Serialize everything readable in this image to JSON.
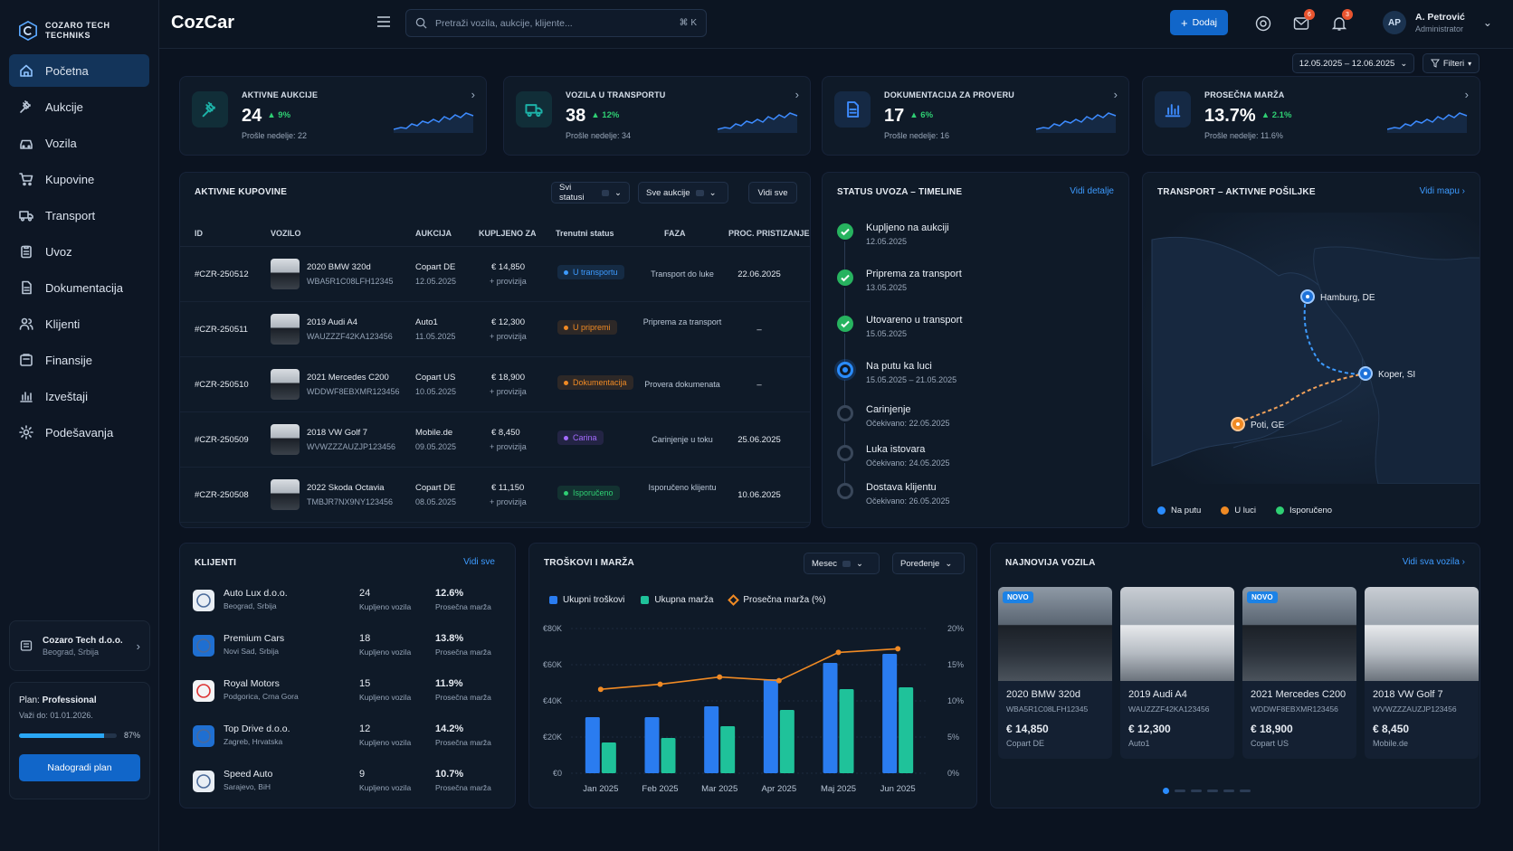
{
  "brand": {
    "logo_title": "COZARO TECH",
    "logo_sub": "TECHNIKS",
    "app_name": "CozCar"
  },
  "nav": [
    {
      "label": "Početna",
      "icon": "home-icon",
      "active": true
    },
    {
      "label": "Aukcije",
      "icon": "gavel-icon"
    },
    {
      "label": "Vozila",
      "icon": "car-icon"
    },
    {
      "label": "Kupovine",
      "icon": "cart-icon"
    },
    {
      "label": "Transport",
      "icon": "truck-icon"
    },
    {
      "label": "Uvoz",
      "icon": "clipboard-icon"
    },
    {
      "label": "Dokumentacija",
      "icon": "document-icon"
    },
    {
      "label": "Klijenti",
      "icon": "users-icon"
    },
    {
      "label": "Finansije",
      "icon": "wallet-icon"
    },
    {
      "label": "Izveštaji",
      "icon": "bar-chart-icon"
    },
    {
      "label": "Podešavanja",
      "icon": "gear-icon"
    }
  ],
  "company": {
    "name": "Cozaro Tech d.o.o.",
    "location": "Beograd, Srbija"
  },
  "plan": {
    "label": "Plan:",
    "name": "Professional",
    "valid": "Važi do: 01.01.2026.",
    "progress_pct": 87,
    "progress_text": "87%",
    "upgrade": "Nadogradi plan"
  },
  "search": {
    "placeholder": "Pretraži vozila, aukcije, klijente...",
    "shortcut": "⌘ K"
  },
  "topbar": {
    "add_label": "Dodaj",
    "mail_badge": "6",
    "bell_badge": "3"
  },
  "user": {
    "initials": "AP",
    "name": "A. Petrović",
    "role": "Administrator"
  },
  "filters": {
    "date_range": "12.05.2025 – 12.06.2025",
    "filter_label": "Filteri"
  },
  "kpis": [
    {
      "label": "AKTIVNE AUKCIJE",
      "value": "24",
      "change": "▲ 9%",
      "prev": "Prošle nedelje: 22",
      "icon": "gavel-icon",
      "color": "#1db2a8"
    },
    {
      "label": "VOZILA U TRANSPORTU",
      "value": "38",
      "change": "▲ 12%",
      "prev": "Prošle nedelje: 34",
      "icon": "truck-icon",
      "color": "#1db2a8"
    },
    {
      "label": "DOKUMENTACIJA ZA PROVERU",
      "value": "17",
      "change": "▲ 6%",
      "prev": "Prošle nedelje: 16",
      "icon": "document-icon",
      "color": "#3d8bff"
    },
    {
      "label": "PROSEČNA MARŽA",
      "value": "13.7%",
      "change": "▲ 2.1%",
      "prev": "Prošle nedelje: 11.6%",
      "icon": "bar-chart-icon",
      "color": "#3d8bff"
    }
  ],
  "purchases": {
    "title": "AKTIVNE KUPOVINE",
    "filter_status": "Svi statusi",
    "filter_auction": "Sve aukcije",
    "view_all": "Vidi sve",
    "columns": [
      "ID",
      "VOZILO",
      "AUKCIJA",
      "KUPLJENO ZA",
      "Trenutni status",
      "FAZA",
      "PROC. PRISTIZANJE"
    ],
    "rows": [
      {
        "id": "#CZR-250512",
        "vehicle": "2020 BMW 320d",
        "vin": "WBA5R1C08LFH12345",
        "auction": "Copart DE",
        "adate": "12.05.2025",
        "price": "€ 14,850",
        "fee": "+ provizija",
        "status": "U transportu",
        "status_color": "#3d9bff",
        "phase": "Transport do luke",
        "eta": "22.06.2025"
      },
      {
        "id": "#CZR-250511",
        "vehicle": "2019 Audi A4",
        "vin": "WAUZZZF42KA123456",
        "auction": "Auto1",
        "adate": "11.05.2025",
        "price": "€ 12,300",
        "fee": "+ provizija",
        "status": "U pripremi",
        "status_color": "#f08a24",
        "phase": "Priprema za transport",
        "eta": "–"
      },
      {
        "id": "#CZR-250510",
        "vehicle": "2021 Mercedes C200",
        "vin": "WDDWF8EBXMR123456",
        "auction": "Copart US",
        "adate": "10.05.2025",
        "price": "€ 18,900",
        "fee": "+ provizija",
        "status": "Dokumentacija",
        "status_color": "#f08a24",
        "phase": "Provera dokumenata",
        "eta": "–"
      },
      {
        "id": "#CZR-250509",
        "vehicle": "2018 VW Golf 7",
        "vin": "WVWZZZAUZJP123456",
        "auction": "Mobile.de",
        "adate": "09.05.2025",
        "price": "€ 8,450",
        "fee": "+ provizija",
        "status": "Carina",
        "status_color": "#a46bff",
        "phase": "Carinjenje u toku",
        "eta": "25.06.2025"
      },
      {
        "id": "#CZR-250508",
        "vehicle": "2022 Skoda Octavia",
        "vin": "TMBJR7NX9NY123456",
        "auction": "Copart DE",
        "adate": "08.05.2025",
        "price": "€ 11,150",
        "fee": "+ provizija",
        "status": "Isporučeno",
        "status_color": "#2fcf73",
        "phase": "Isporučeno klijentu",
        "eta": "10.06.2025"
      }
    ]
  },
  "timeline": {
    "title": "STATUS UVOZA – TIMELINE",
    "link": "Vidi detalje",
    "steps": [
      {
        "title": "Kupljeno na aukciji",
        "date": "12.05.2025",
        "state": "done"
      },
      {
        "title": "Priprema za transport",
        "date": "13.05.2025",
        "state": "done"
      },
      {
        "title": "Utovareno u transport",
        "date": "15.05.2025",
        "state": "done"
      },
      {
        "title": "Na putu ka luci",
        "date": "15.05.2025 – 21.05.2025",
        "state": "current"
      },
      {
        "title": "Carinjenje",
        "date": "Očekivano: 22.05.2025",
        "state": "pending"
      },
      {
        "title": "Luka istovara",
        "date": "Očekivano: 24.05.2025",
        "state": "pending"
      },
      {
        "title": "Dostava klijentu",
        "date": "Očekivano: 26.05.2025",
        "state": "pending"
      }
    ]
  },
  "transport": {
    "title": "TRANSPORT – AKTIVNE POŠILJKE",
    "link": "Vidi mapu",
    "points": [
      {
        "label": "Hamburg, DE"
      },
      {
        "label": "Koper, SI"
      },
      {
        "label": "Poti, GE"
      }
    ],
    "legend": [
      {
        "label": "Na putu",
        "color": "#2a8cff"
      },
      {
        "label": "U luci",
        "color": "#f08a24"
      },
      {
        "label": "Isporučeno",
        "color": "#2fcf73"
      }
    ]
  },
  "clients": {
    "title": "KLIJENTI",
    "link": "Vidi sve",
    "rows": [
      {
        "name": "Auto Lux d.o.o.",
        "loc": "Beograd, Srbija",
        "count": "24",
        "count_label": "Kupljeno vozila",
        "margin": "12.6%",
        "margin_label": "Prosečna marža"
      },
      {
        "name": "Premium Cars",
        "loc": "Novi Sad, Srbija",
        "count": "18",
        "count_label": "Kupljeno vozila",
        "margin": "13.8%",
        "margin_label": "Prosečna marža"
      },
      {
        "name": "Royal Motors",
        "loc": "Podgorica, Crna Gora",
        "count": "15",
        "count_label": "Kupljeno vozila",
        "margin": "11.9%",
        "margin_label": "Prosečna marža"
      },
      {
        "name": "Top Drive d.o.o.",
        "loc": "Zagreb, Hrvatska",
        "count": "12",
        "count_label": "Kupljeno vozila",
        "margin": "14.2%",
        "margin_label": "Prosečna marža"
      },
      {
        "name": "Speed Auto",
        "loc": "Sarajevo, BiH",
        "count": "9",
        "count_label": "Kupljeno vozila",
        "margin": "10.7%",
        "margin_label": "Prosečna marža"
      }
    ]
  },
  "costs": {
    "title": "TROŠKOVI I MARŽA",
    "period": "Mesec",
    "compare": "Poređenje"
  },
  "chart_data": {
    "type": "bar",
    "categories": [
      "Jan 2025",
      "Feb 2025",
      "Mar 2025",
      "Apr 2025",
      "Maj 2025",
      "Jun 2025"
    ],
    "series": [
      {
        "name": "Ukupni troškovi",
        "kind": "bar",
        "color": "#2a7cf0",
        "values": [
          31000,
          31000,
          37000,
          52000,
          61000,
          66000
        ]
      },
      {
        "name": "Ukupna marža",
        "kind": "bar",
        "color": "#1fc29a",
        "values": [
          17000,
          19500,
          26000,
          35000,
          46500,
          47500
        ]
      },
      {
        "name": "Prosečna marža (%)",
        "kind": "line",
        "axis": "right",
        "color": "#f08a24",
        "values": [
          11.6,
          12.3,
          13.3,
          12.8,
          16.7,
          17.2
        ]
      }
    ],
    "yticks": [
      "€0",
      "€20K",
      "€40K",
      "€60K",
      "€80K"
    ],
    "ylim": [
      0,
      80000
    ],
    "y2ticks": [
      "0%",
      "5%",
      "10%",
      "15%",
      "20%"
    ],
    "y2lim": [
      0,
      20
    ],
    "legend_position": "top-left"
  },
  "vehicles": {
    "title": "NAJNOVIJA VOZILA",
    "link": "Vidi sva vozila",
    "new_label": "NOVO",
    "items": [
      {
        "title": "2020 BMW 320d",
        "vin": "WBA5R1C08LFH12345",
        "price": "€ 14,850",
        "source": "Copart DE",
        "new": true,
        "light": false
      },
      {
        "title": "2019 Audi A4",
        "vin": "WAUZZZF42KA123456",
        "price": "€ 12,300",
        "source": "Auto1",
        "new": false,
        "light": true
      },
      {
        "title": "2021 Mercedes C200",
        "vin": "WDDWF8EBXMR123456",
        "price": "€ 18,900",
        "source": "Copart US",
        "new": true,
        "light": false
      },
      {
        "title": "2018 VW Golf 7",
        "vin": "WVWZZZAUZJP123456",
        "price": "€ 8,450",
        "source": "Mobile.de",
        "new": false,
        "light": true
      }
    ]
  }
}
